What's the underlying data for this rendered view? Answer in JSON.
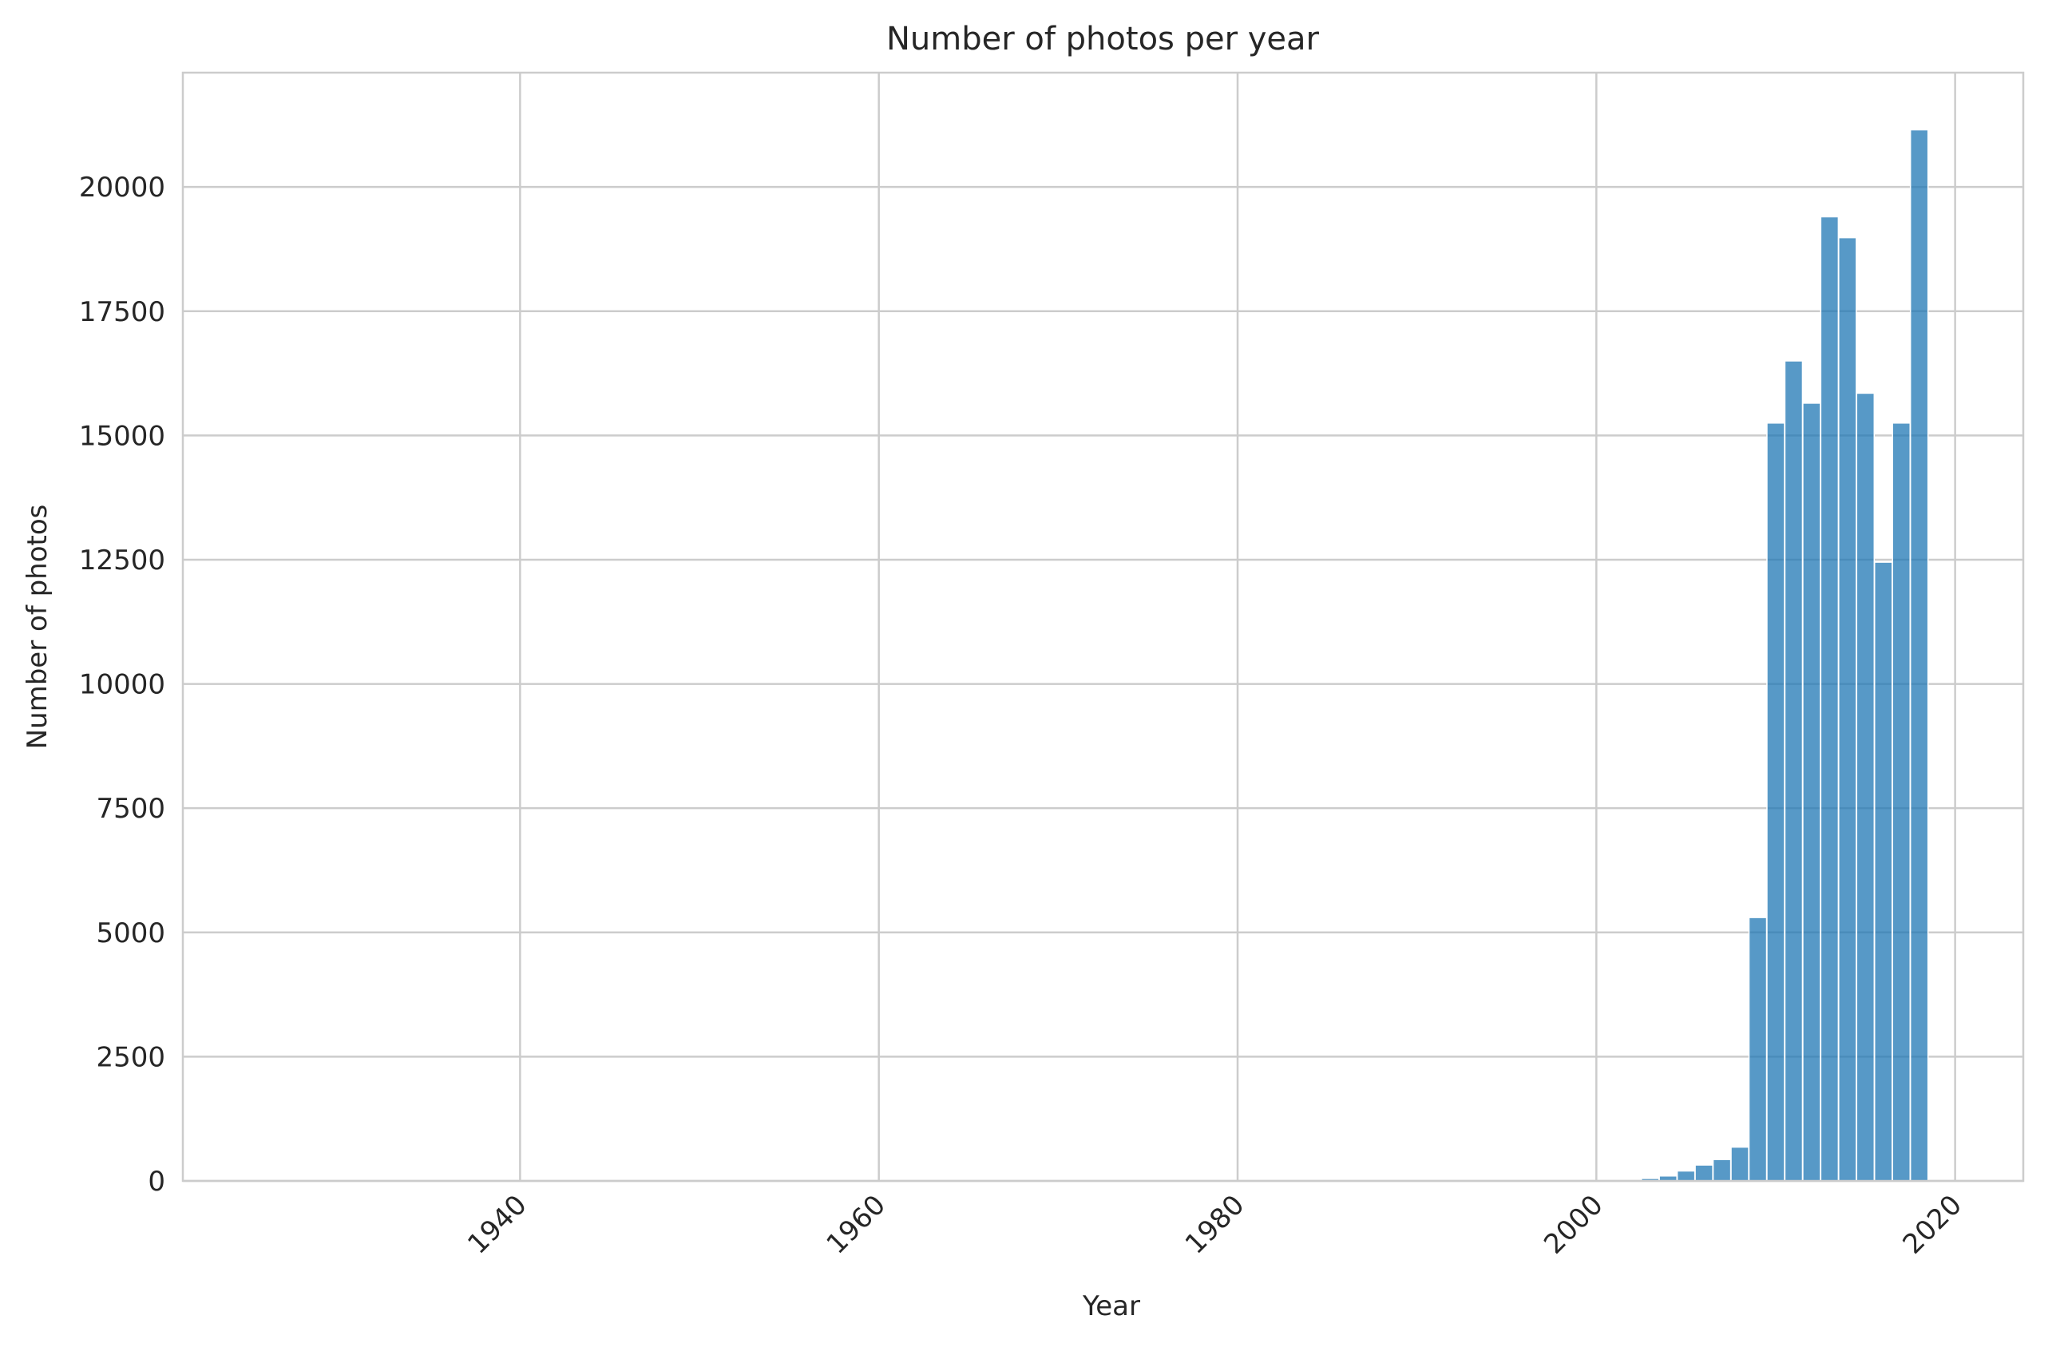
{
  "chart_data": {
    "type": "bar",
    "title": "Number of photos per year",
    "xlabel": "Year",
    "ylabel": "Number of photos",
    "xlim": [
      1921.2,
      2023.8
    ],
    "ylim": [
      0,
      22300
    ],
    "x_ticks": [
      1940,
      1960,
      1980,
      2000,
      2020
    ],
    "y_ticks": [
      0,
      2500,
      5000,
      7500,
      10000,
      12500,
      15000,
      17500,
      20000
    ],
    "grid": true,
    "bar_color": "#1f77b4",
    "bin_width": 0.98,
    "bins": [
      {
        "x": 2003,
        "value": 50
      },
      {
        "x": 2004,
        "value": 100
      },
      {
        "x": 2005,
        "value": 200
      },
      {
        "x": 2006,
        "value": 320
      },
      {
        "x": 2007,
        "value": 430
      },
      {
        "x": 2008,
        "value": 680
      },
      {
        "x": 2009,
        "value": 5300
      },
      {
        "x": 2010,
        "value": 15250
      },
      {
        "x": 2011,
        "value": 16500
      },
      {
        "x": 2012,
        "value": 15650
      },
      {
        "x": 2013,
        "value": 19400
      },
      {
        "x": 2014,
        "value": 18980
      },
      {
        "x": 2015,
        "value": 15850
      },
      {
        "x": 2016,
        "value": 12450
      },
      {
        "x": 2017,
        "value": 15250
      },
      {
        "x": 2018,
        "value": 21150
      }
    ]
  }
}
